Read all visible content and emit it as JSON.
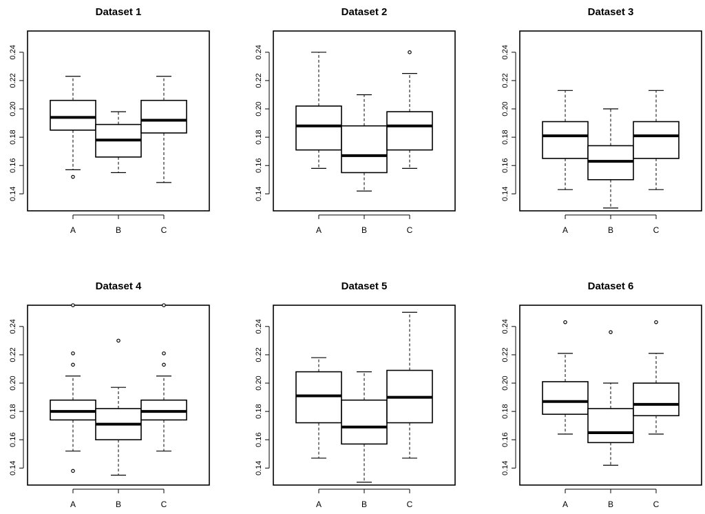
{
  "chart_data": [
    {
      "type": "boxplot",
      "title": "Dataset 1",
      "xlabel": "",
      "ylabel": "",
      "ylim": [
        0.128,
        0.255
      ],
      "yticks": [
        0.14,
        0.16,
        0.18,
        0.2,
        0.22,
        0.24
      ],
      "ytick_labels": [
        "0.14",
        "0.16",
        "0.18",
        "0.20",
        "0.22",
        "0.24"
      ],
      "categories": [
        "A",
        "B",
        "C"
      ],
      "boxes": [
        {
          "category": "A",
          "whisker_low": 0.157,
          "q1": 0.185,
          "median": 0.194,
          "q3": 0.206,
          "whisker_high": 0.223,
          "outliers": [
            0.152
          ]
        },
        {
          "category": "B",
          "whisker_low": 0.155,
          "q1": 0.166,
          "median": 0.178,
          "q3": 0.189,
          "whisker_high": 0.198,
          "outliers": []
        },
        {
          "category": "C",
          "whisker_low": 0.148,
          "q1": 0.183,
          "median": 0.192,
          "q3": 0.206,
          "whisker_high": 0.223,
          "outliers": []
        }
      ]
    },
    {
      "type": "boxplot",
      "title": "Dataset 2",
      "xlabel": "",
      "ylabel": "",
      "ylim": [
        0.128,
        0.255
      ],
      "yticks": [
        0.14,
        0.16,
        0.18,
        0.2,
        0.22,
        0.24
      ],
      "ytick_labels": [
        "0.14",
        "0.16",
        "0.18",
        "0.20",
        "0.22",
        "0.24"
      ],
      "categories": [
        "A",
        "B",
        "C"
      ],
      "boxes": [
        {
          "category": "A",
          "whisker_low": 0.158,
          "q1": 0.171,
          "median": 0.188,
          "q3": 0.202,
          "whisker_high": 0.24,
          "outliers": []
        },
        {
          "category": "B",
          "whisker_low": 0.142,
          "q1": 0.155,
          "median": 0.167,
          "q3": 0.188,
          "whisker_high": 0.21,
          "outliers": []
        },
        {
          "category": "C",
          "whisker_low": 0.158,
          "q1": 0.171,
          "median": 0.188,
          "q3": 0.198,
          "whisker_high": 0.225,
          "outliers": [
            0.24
          ]
        }
      ]
    },
    {
      "type": "boxplot",
      "title": "Dataset 3",
      "xlabel": "",
      "ylabel": "",
      "ylim": [
        0.128,
        0.255
      ],
      "yticks": [
        0.14,
        0.16,
        0.18,
        0.2,
        0.22,
        0.24
      ],
      "ytick_labels": [
        "0.14",
        "0.16",
        "0.18",
        "0.20",
        "0.22",
        "0.24"
      ],
      "categories": [
        "A",
        "B",
        "C"
      ],
      "boxes": [
        {
          "category": "A",
          "whisker_low": 0.143,
          "q1": 0.165,
          "median": 0.181,
          "q3": 0.191,
          "whisker_high": 0.213,
          "outliers": []
        },
        {
          "category": "B",
          "whisker_low": 0.13,
          "q1": 0.15,
          "median": 0.163,
          "q3": 0.174,
          "whisker_high": 0.2,
          "outliers": []
        },
        {
          "category": "C",
          "whisker_low": 0.143,
          "q1": 0.165,
          "median": 0.181,
          "q3": 0.191,
          "whisker_high": 0.213,
          "outliers": []
        }
      ]
    },
    {
      "type": "boxplot",
      "title": "Dataset 4",
      "xlabel": "",
      "ylabel": "",
      "ylim": [
        0.128,
        0.255
      ],
      "yticks": [
        0.14,
        0.16,
        0.18,
        0.2,
        0.22,
        0.24
      ],
      "ytick_labels": [
        "0.14",
        "0.16",
        "0.18",
        "0.20",
        "0.22",
        "0.24"
      ],
      "categories": [
        "A",
        "B",
        "C"
      ],
      "boxes": [
        {
          "category": "A",
          "whisker_low": 0.152,
          "q1": 0.174,
          "median": 0.18,
          "q3": 0.188,
          "whisker_high": 0.205,
          "outliers": [
            0.138,
            0.213,
            0.221,
            0.255
          ]
        },
        {
          "category": "B",
          "whisker_low": 0.135,
          "q1": 0.16,
          "median": 0.171,
          "q3": 0.182,
          "whisker_high": 0.197,
          "outliers": [
            0.23
          ]
        },
        {
          "category": "C",
          "whisker_low": 0.152,
          "q1": 0.174,
          "median": 0.18,
          "q3": 0.188,
          "whisker_high": 0.205,
          "outliers": [
            0.213,
            0.221,
            0.255
          ]
        }
      ]
    },
    {
      "type": "boxplot",
      "title": "Dataset 5",
      "xlabel": "",
      "ylabel": "",
      "ylim": [
        0.128,
        0.255
      ],
      "yticks": [
        0.14,
        0.16,
        0.18,
        0.2,
        0.22,
        0.24
      ],
      "ytick_labels": [
        "0.14",
        "0.16",
        "0.18",
        "0.20",
        "0.22",
        "0.24"
      ],
      "categories": [
        "A",
        "B",
        "C"
      ],
      "boxes": [
        {
          "category": "A",
          "whisker_low": 0.147,
          "q1": 0.172,
          "median": 0.191,
          "q3": 0.208,
          "whisker_high": 0.218,
          "outliers": []
        },
        {
          "category": "B",
          "whisker_low": 0.13,
          "q1": 0.157,
          "median": 0.169,
          "q3": 0.188,
          "whisker_high": 0.208,
          "outliers": []
        },
        {
          "category": "C",
          "whisker_low": 0.147,
          "q1": 0.172,
          "median": 0.19,
          "q3": 0.209,
          "whisker_high": 0.25,
          "outliers": []
        }
      ]
    },
    {
      "type": "boxplot",
      "title": "Dataset 6",
      "xlabel": "",
      "ylabel": "",
      "ylim": [
        0.128,
        0.255
      ],
      "yticks": [
        0.14,
        0.16,
        0.18,
        0.2,
        0.22,
        0.24
      ],
      "ytick_labels": [
        "0.14",
        "0.16",
        "0.18",
        "0.20",
        "0.22",
        "0.24"
      ],
      "categories": [
        "A",
        "B",
        "C"
      ],
      "boxes": [
        {
          "category": "A",
          "whisker_low": 0.164,
          "q1": 0.178,
          "median": 0.187,
          "q3": 0.201,
          "whisker_high": 0.221,
          "outliers": [
            0.243
          ]
        },
        {
          "category": "B",
          "whisker_low": 0.142,
          "q1": 0.158,
          "median": 0.165,
          "q3": 0.182,
          "whisker_high": 0.2,
          "outliers": [
            0.236
          ]
        },
        {
          "category": "C",
          "whisker_low": 0.164,
          "q1": 0.177,
          "median": 0.185,
          "q3": 0.2,
          "whisker_high": 0.221,
          "outliers": [
            0.243
          ]
        }
      ]
    }
  ]
}
